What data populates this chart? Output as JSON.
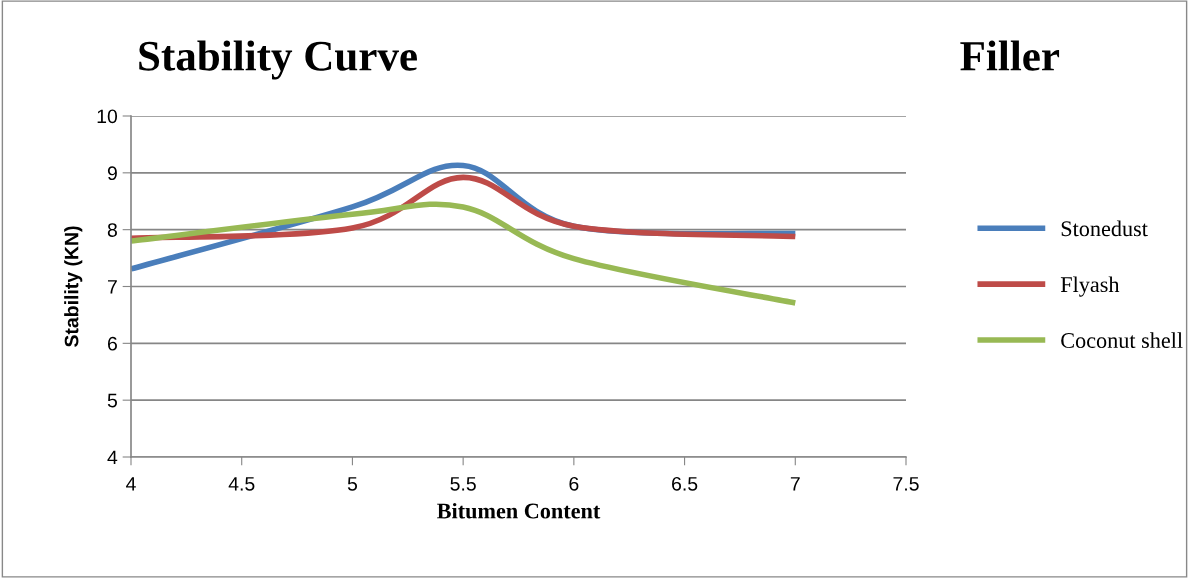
{
  "chart_data": {
    "type": "line",
    "title": "Stability Curve",
    "xlabel": "Bitumen Content",
    "ylabel": "Stability (KN)",
    "annotations": [
      "Filler"
    ],
    "x": [
      4,
      5,
      5.5,
      6,
      7
    ],
    "series": [
      {
        "name": "Stonedust",
        "color": "#4a7ebb",
        "values": [
          7.31,
          8.4,
          9.13,
          8.06,
          7.93
        ]
      },
      {
        "name": "Flyash",
        "color": "#be4b48",
        "values": [
          7.85,
          8.03,
          8.92,
          8.06,
          7.88
        ]
      },
      {
        "name": "Coconut shell",
        "color": "#98b954",
        "values": [
          7.8,
          8.27,
          8.4,
          7.49,
          6.71
        ]
      }
    ],
    "xlim": [
      4,
      7.5
    ],
    "xticks": [
      4,
      4.5,
      5,
      5.5,
      6,
      6.5,
      7,
      7.5
    ],
    "ylim": [
      4,
      10
    ],
    "yticks": [
      4,
      5,
      6,
      7,
      8,
      9,
      10
    ],
    "grid": "y",
    "legend": "right",
    "marker": "none",
    "line_style": "solid"
  }
}
